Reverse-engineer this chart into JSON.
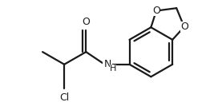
{
  "bg_color": "#ffffff",
  "line_color": "#1a1a1a",
  "line_width": 1.6,
  "figsize": [
    2.77,
    1.33
  ],
  "dpi": 100,
  "xlim": [
    0,
    277
  ],
  "ylim": [
    0,
    133
  ]
}
